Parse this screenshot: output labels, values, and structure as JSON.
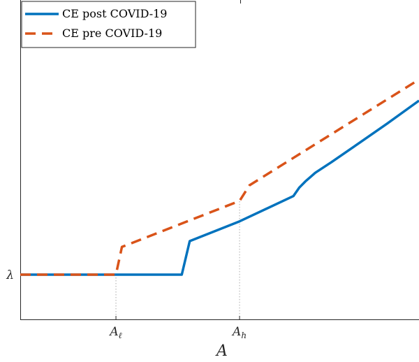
{
  "chart_data": {
    "type": "line",
    "xlabel": "A",
    "ylabel": "",
    "xlim": [
      0,
      100
    ],
    "ylim": [
      0,
      100
    ],
    "grid": false,
    "legend_position": "top-left",
    "x_ticks": [
      {
        "value": 24,
        "label": "A",
        "sub": "ℓ"
      },
      {
        "value": 55,
        "label": "A",
        "sub": "h"
      }
    ],
    "y_ticks": [
      {
        "value": 14,
        "label": "λ"
      }
    ],
    "reference_lines": [
      {
        "orientation": "vertical",
        "x": 24,
        "y_to": 14
      },
      {
        "orientation": "vertical",
        "x": 55,
        "y_to": 37
      }
    ],
    "series": [
      {
        "name": "CE post COVID-19",
        "color": "#0072BD",
        "style": "solid",
        "x": [
          0,
          24,
          40.5,
          42.5,
          55,
          68.5,
          70,
          71.5,
          74,
          78,
          85,
          92,
          100
        ],
        "y": [
          14,
          14,
          14,
          24.5,
          30.7,
          38.6,
          41.3,
          43.2,
          45.9,
          49.2,
          55.2,
          61.3,
          68.5
        ]
      },
      {
        "name": "CE pre COVID-19",
        "color": "#D95319",
        "style": "dashed",
        "x": [
          0,
          24,
          25.5,
          55,
          57.5,
          100
        ],
        "y": [
          14,
          14,
          22.7,
          37.1,
          42,
          75.1
        ]
      }
    ]
  }
}
